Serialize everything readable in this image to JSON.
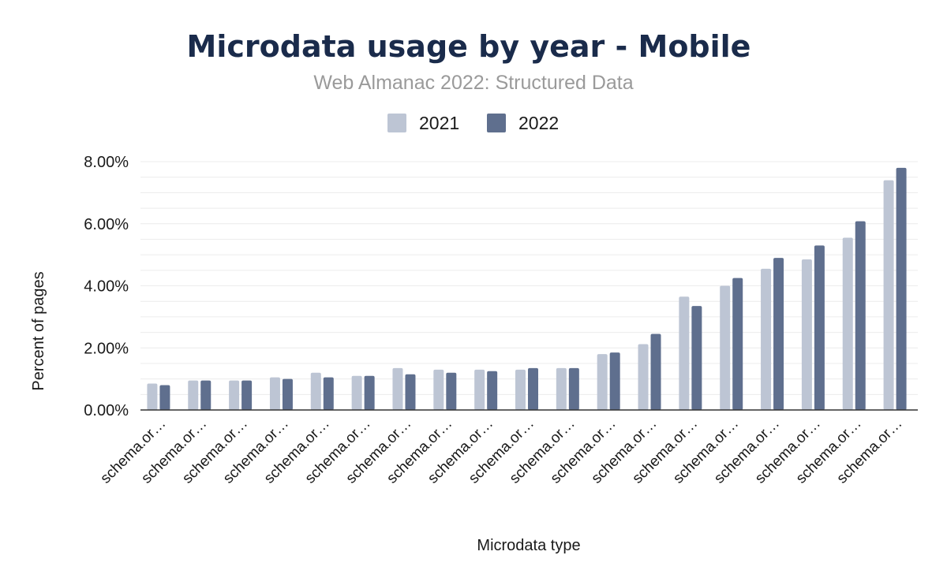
{
  "title": "Microdata usage by year - Mobile",
  "subtitle": "Web Almanac 2022: Structured Data",
  "colors": {
    "title": "#1a2b4b",
    "subtitle": "#9a9a9a",
    "text": "#1a1a1a",
    "grid": "#ececec",
    "axis": "#333333",
    "series_2021": "#bdc5d4",
    "series_2022": "#5f6f8e"
  },
  "chart_data": {
    "type": "bar",
    "title": "Microdata usage by year - Mobile",
    "subtitle": "Web Almanac 2022: Structured Data",
    "xlabel": "Microdata type",
    "ylabel": "Percent of pages",
    "ylim": [
      0,
      8
    ],
    "yticks": [
      "0.00%",
      "2.00%",
      "4.00%",
      "6.00%",
      "8.00%"
    ],
    "grid": true,
    "legend_position": "top-center",
    "categories": [
      "schema.or…",
      "schema.or…",
      "schema.or…",
      "schema.or…",
      "schema.or…",
      "schema.or…",
      "schema.or…",
      "schema.or…",
      "schema.or…",
      "schema.or…",
      "schema.or…",
      "schema.or…",
      "schema.or…",
      "schema.or…",
      "schema.or…",
      "schema.or…",
      "schema.or…",
      "schema.or…",
      "schema.or…"
    ],
    "series": [
      {
        "name": "2021",
        "color": "#bdc5d4",
        "values": [
          0.85,
          0.95,
          0.95,
          1.05,
          1.2,
          1.1,
          1.35,
          1.3,
          1.3,
          1.3,
          1.35,
          1.8,
          2.12,
          3.65,
          4.0,
          4.55,
          4.85,
          5.55,
          7.4
        ]
      },
      {
        "name": "2022",
        "color": "#5f6f8e",
        "values": [
          0.8,
          0.95,
          0.95,
          1.0,
          1.05,
          1.1,
          1.15,
          1.2,
          1.25,
          1.35,
          1.35,
          1.85,
          2.45,
          3.35,
          4.25,
          4.9,
          5.3,
          6.08,
          7.8
        ]
      }
    ]
  }
}
